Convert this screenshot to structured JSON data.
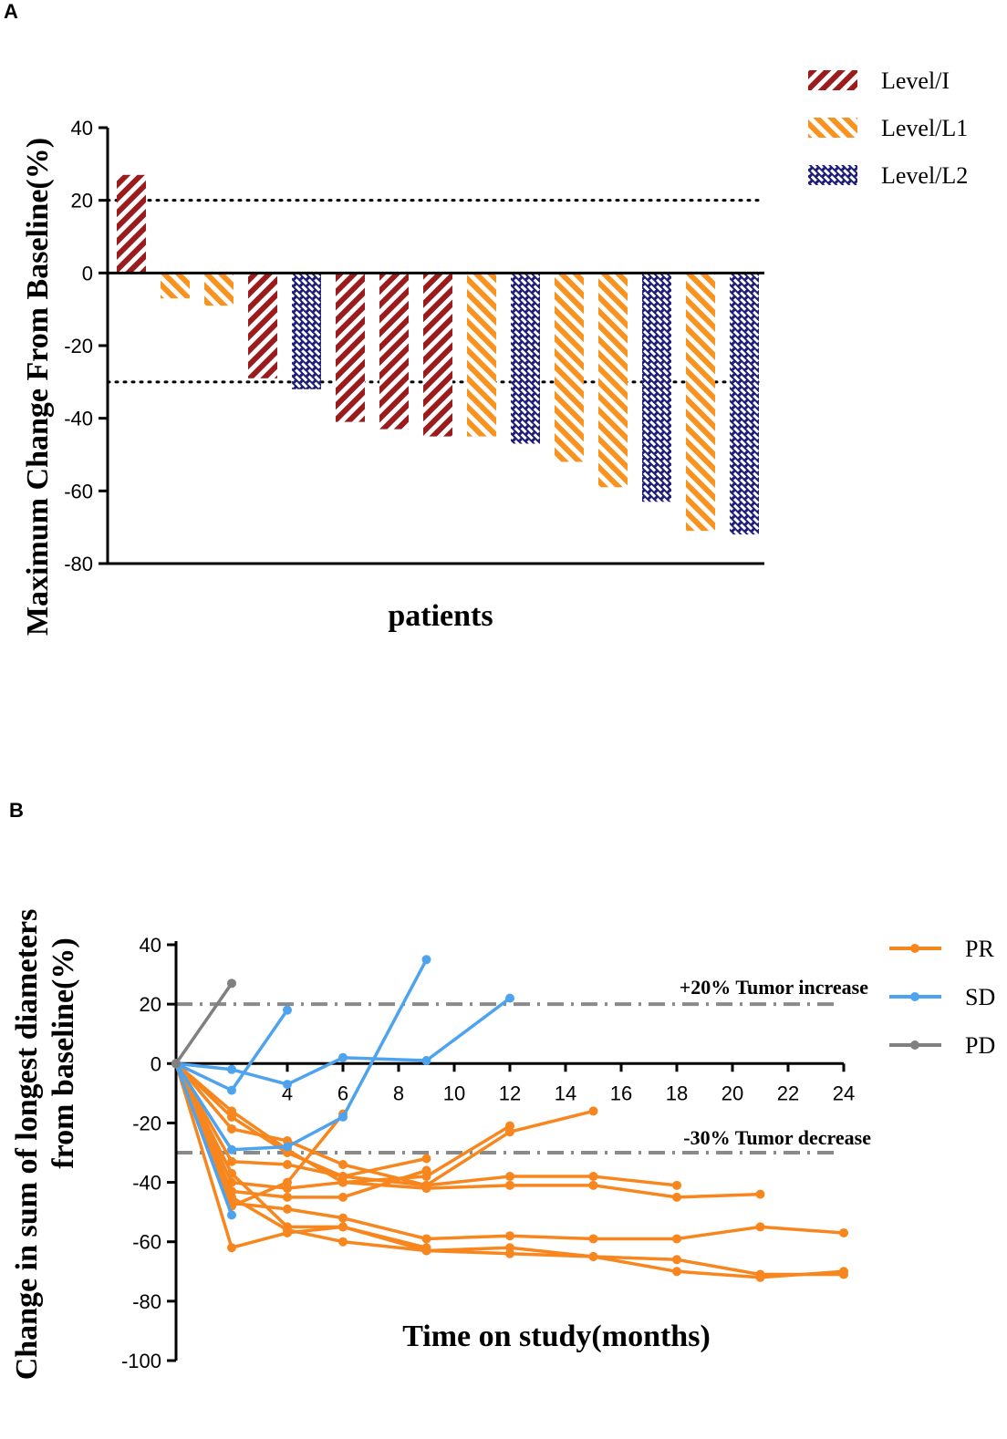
{
  "panels": {
    "a": "A",
    "b": "B"
  },
  "chart_data": [
    {
      "type": "bar",
      "panel": "A",
      "ylabel": "Maximum Change From Baseline(%)",
      "xlabel": "patients",
      "ylim": [
        -80,
        40
      ],
      "yticks": [
        40,
        20,
        0,
        -20,
        -40,
        -60,
        -80
      ],
      "reference_lines": [
        20,
        -30
      ],
      "legend": [
        {
          "name": "Level/I",
          "color": "#9B1C1C",
          "pattern": "diag-right"
        },
        {
          "name": "Level/L1",
          "color": "#F7931E",
          "pattern": "diag-left"
        },
        {
          "name": "Level/L2",
          "color": "#1F1F7A",
          "pattern": "brick"
        }
      ],
      "bars": [
        {
          "value": 27,
          "level": "Level/I"
        },
        {
          "value": -7,
          "level": "Level/L1"
        },
        {
          "value": -9,
          "level": "Level/L1"
        },
        {
          "value": -29,
          "level": "Level/I"
        },
        {
          "value": -32,
          "level": "Level/L2"
        },
        {
          "value": -41,
          "level": "Level/I"
        },
        {
          "value": -43,
          "level": "Level/I"
        },
        {
          "value": -45,
          "level": "Level/I"
        },
        {
          "value": -45,
          "level": "Level/L1"
        },
        {
          "value": -47,
          "level": "Level/L2"
        },
        {
          "value": -52,
          "level": "Level/L1"
        },
        {
          "value": -59,
          "level": "Level/L1"
        },
        {
          "value": -63,
          "level": "Level/L2"
        },
        {
          "value": -71,
          "level": "Level/L1"
        },
        {
          "value": -72,
          "level": "Level/L2"
        }
      ]
    },
    {
      "type": "line",
      "panel": "B",
      "ylabel_line1": "Change in sum of longest diameters",
      "ylabel_line2": "from baseline(%)",
      "xlabel": "Time on study(months)",
      "xlim": [
        0,
        24
      ],
      "ylim": [
        -100,
        40
      ],
      "xticks": [
        4,
        6,
        8,
        10,
        12,
        14,
        16,
        18,
        20,
        22,
        24
      ],
      "yticks": [
        40,
        20,
        0,
        -20,
        -40,
        -60,
        -80,
        -100
      ],
      "reference_lines": [
        {
          "y": 20,
          "label": "+20% Tumor increase"
        },
        {
          "y": -30,
          "label": "-30% Tumor decrease"
        }
      ],
      "legend": [
        {
          "name": "PR",
          "color": "#F7861E"
        },
        {
          "name": "SD",
          "color": "#4DA3EE"
        },
        {
          "name": "PD",
          "color": "#808080"
        }
      ],
      "series": [
        {
          "group": "PR",
          "x": [
            0,
            2,
            4,
            6,
            9
          ],
          "y": [
            0,
            -62,
            -57,
            -55,
            -62
          ]
        },
        {
          "group": "PR",
          "x": [
            0,
            2,
            4,
            6
          ],
          "y": [
            0,
            -48,
            -40,
            -17
          ]
        },
        {
          "group": "PR",
          "x": [
            0,
            2,
            4,
            6,
            9
          ],
          "y": [
            0,
            -43,
            -45,
            -45,
            -36
          ]
        },
        {
          "group": "PR",
          "x": [
            0,
            2,
            4,
            6,
            9,
            12
          ],
          "y": [
            0,
            -40,
            -42,
            -40,
            -38,
            -21
          ]
        },
        {
          "group": "PR",
          "x": [
            0,
            2,
            4,
            6,
            9
          ],
          "y": [
            0,
            -33,
            -34,
            -38,
            -32
          ]
        },
        {
          "group": "PR",
          "x": [
            0,
            2,
            4,
            6,
            9,
            12,
            15
          ],
          "y": [
            0,
            -22,
            -26,
            -34,
            -41,
            -23,
            -16
          ]
        },
        {
          "group": "PR",
          "x": [
            0,
            2,
            4,
            6,
            9,
            12,
            15,
            18
          ],
          "y": [
            0,
            -18,
            -30,
            -38,
            -41,
            -38,
            -38,
            -41
          ]
        },
        {
          "group": "PR",
          "x": [
            0,
            2,
            4,
            6,
            9,
            12,
            15,
            18,
            21
          ],
          "y": [
            0,
            -16,
            -29,
            -40,
            -42,
            -41,
            -41,
            -45,
            -44
          ]
        },
        {
          "group": "PR",
          "x": [
            0,
            2,
            4,
            6,
            9,
            12,
            15,
            18,
            21,
            24
          ],
          "y": [
            0,
            -47,
            -49,
            -52,
            -59,
            -58,
            -59,
            -59,
            -55,
            -57
          ]
        },
        {
          "group": "PR",
          "x": [
            0,
            2,
            4,
            6,
            9,
            12,
            15,
            18,
            21,
            24
          ],
          "y": [
            0,
            -45,
            -56,
            -60,
            -63,
            -64,
            -65,
            -66,
            -71,
            -71
          ]
        },
        {
          "group": "PR",
          "x": [
            0,
            2,
            4,
            6,
            9,
            12,
            15,
            18,
            21,
            24
          ],
          "y": [
            0,
            -37,
            -55,
            -55,
            -63,
            -62,
            -65,
            -70,
            -72,
            -70
          ]
        },
        {
          "group": "SD",
          "x": [
            0,
            2,
            4
          ],
          "y": [
            0,
            -9,
            18
          ]
        },
        {
          "group": "SD",
          "x": [
            0,
            2,
            4,
            6,
            9,
            12
          ],
          "y": [
            0,
            -2,
            -7,
            2,
            1,
            22
          ]
        },
        {
          "group": "SD",
          "x": [
            0,
            2,
            4,
            6,
            9
          ],
          "y": [
            0,
            -29,
            -28,
            -18,
            35
          ]
        },
        {
          "group": "SD",
          "x": [
            0,
            2
          ],
          "y": [
            0,
            -51
          ]
        },
        {
          "group": "PD",
          "x": [
            0,
            2
          ],
          "y": [
            0,
            27
          ]
        }
      ]
    }
  ]
}
